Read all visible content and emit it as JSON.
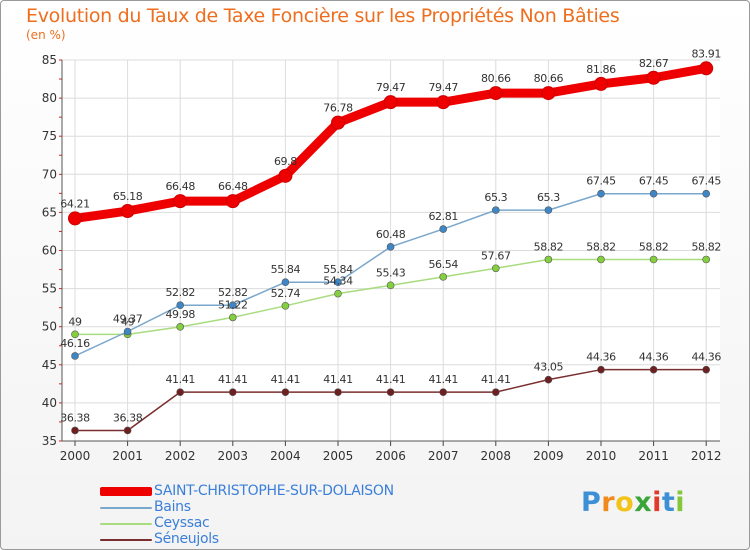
{
  "chart_data": {
    "type": "line",
    "title": "Evolution du Taux de Taxe Foncière sur les Propriétés Non Bâties",
    "ylabel": "(en %)",
    "xlabel": "",
    "categories": [
      "2000",
      "2001",
      "2002",
      "2003",
      "2004",
      "2005",
      "2006",
      "2007",
      "2008",
      "2009",
      "2010",
      "2011",
      "2012"
    ],
    "ylim": [
      35,
      85
    ],
    "yticks": [
      "35",
      "40",
      "45",
      "50",
      "55",
      "60",
      "65",
      "70",
      "75",
      "80",
      "85"
    ],
    "grid": true,
    "legend_position": "bottom-left",
    "series": [
      {
        "name": "SAINT-CHRISTOPHE-SUR-DOLAISON",
        "color": "#ee0000",
        "values": [
          64.21,
          65.18,
          66.48,
          66.48,
          69.8,
          76.78,
          79.47,
          79.47,
          80.66,
          80.66,
          81.86,
          82.67,
          83.91
        ],
        "labels": [
          "64.21",
          "65.18",
          "66.48",
          "66.48",
          "69.8",
          "76.78",
          "79.47",
          "79.47",
          "80.66",
          "80.66",
          "81.86",
          "82.67",
          "83.91"
        ]
      },
      {
        "name": "Bains",
        "color": "#7aa7cc",
        "marker_color": "#3f86c6",
        "values": [
          46.16,
          49.37,
          52.82,
          52.82,
          55.84,
          55.84,
          60.48,
          62.81,
          65.3,
          65.3,
          67.45,
          67.45,
          67.45
        ],
        "labels": [
          "46.16",
          "49.37",
          "52.82",
          "52.82",
          "55.84",
          "55.84",
          "60.48",
          "62.81",
          "65.3",
          "65.3",
          "67.45",
          "67.45",
          "67.45"
        ]
      },
      {
        "name": "Ceyssac",
        "color": "#a9dc7f",
        "marker_color": "#84cf3e",
        "values": [
          49,
          49,
          49.98,
          51.22,
          52.74,
          54.34,
          55.43,
          56.54,
          57.67,
          58.82,
          58.82,
          58.82,
          58.82
        ],
        "labels": [
          "49",
          "49",
          "49.98",
          "51.22",
          "52.74",
          "54.34",
          "55.43",
          "56.54",
          "57.67",
          "58.82",
          "58.82",
          "58.82",
          "58.82"
        ]
      },
      {
        "name": "Séneujols",
        "color": "#7a2e2e",
        "marker_color": "#6e1f1f",
        "values": [
          36.38,
          36.38,
          41.41,
          41.41,
          41.41,
          41.41,
          41.41,
          41.41,
          41.41,
          43.05,
          44.36,
          44.36,
          44.36
        ],
        "labels": [
          "36.38",
          "36.38",
          "41.41",
          "41.41",
          "41.41",
          "41.41",
          "41.41",
          "41.41",
          "41.41",
          "43.05",
          "44.36",
          "44.36",
          "44.36"
        ]
      }
    ]
  },
  "logo": {
    "letters": [
      "P",
      "r",
      "o",
      "x",
      "i",
      "t",
      "i"
    ],
    "colors": [
      "#3d8fd6",
      "#f08a1c",
      "#f2c419",
      "#3aa63a",
      "#e23a2a",
      "#3d8fd6",
      "#84c73a"
    ]
  }
}
